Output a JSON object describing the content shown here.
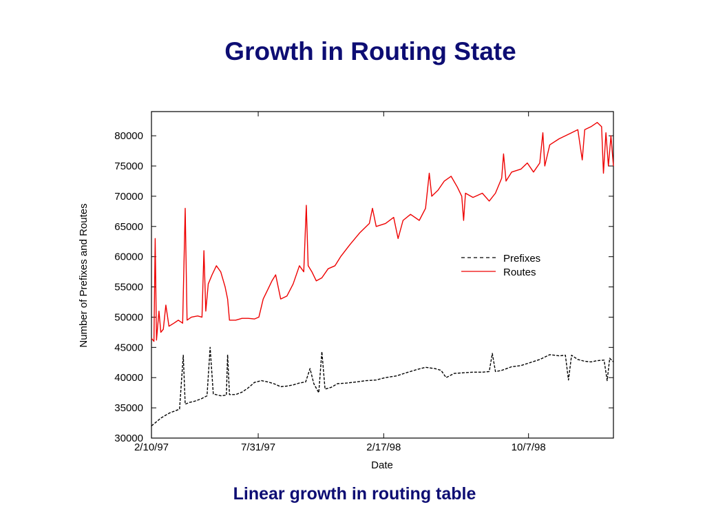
{
  "slide": {
    "title": "Growth in Routing State",
    "caption": "Linear growth in routing table"
  },
  "chart_data": {
    "type": "line",
    "xlabel": "Date",
    "ylabel": "Number of Prefixes and Routes",
    "x_ticks": [
      "2/10/97",
      "7/31/97",
      "2/17/98",
      "10/7/98"
    ],
    "x_range": [
      "1997-02-10",
      "1999-02-20"
    ],
    "ylim": [
      30000,
      84000
    ],
    "y_ticks": [
      30000,
      35000,
      40000,
      45000,
      50000,
      55000,
      60000,
      65000,
      70000,
      75000,
      80000
    ],
    "grid": false,
    "legend_position": "right",
    "series": [
      {
        "name": "Prefixes",
        "color": "#000000",
        "style": "dashed",
        "points": [
          [
            "1997-02-10",
            32000
          ],
          [
            "1997-02-18",
            32700
          ],
          [
            "1997-02-25",
            33300
          ],
          [
            "1997-03-05",
            33800
          ],
          [
            "1997-03-12",
            34200
          ],
          [
            "1997-03-20",
            34500
          ],
          [
            "1997-03-27",
            34800
          ],
          [
            "1997-04-02",
            43700
          ],
          [
            "1997-04-05",
            35600
          ],
          [
            "1997-04-12",
            35900
          ],
          [
            "1997-04-20",
            36100
          ],
          [
            "1997-05-01",
            36500
          ],
          [
            "1997-05-10",
            37000
          ],
          [
            "1997-05-15",
            45000
          ],
          [
            "1997-05-20",
            37300
          ],
          [
            "1997-06-01",
            37000
          ],
          [
            "1997-06-10",
            37100
          ],
          [
            "1997-06-12",
            43800
          ],
          [
            "1997-06-15",
            37200
          ],
          [
            "1997-06-25",
            37200
          ],
          [
            "1997-07-05",
            37600
          ],
          [
            "1997-07-15",
            38300
          ],
          [
            "1997-07-25",
            39200
          ],
          [
            "1997-08-05",
            39500
          ],
          [
            "1997-08-15",
            39300
          ],
          [
            "1997-08-25",
            39000
          ],
          [
            "1997-09-05",
            38500
          ],
          [
            "1997-09-15",
            38600
          ],
          [
            "1997-09-25",
            38800
          ],
          [
            "1997-10-05",
            39100
          ],
          [
            "1997-10-15",
            39300
          ],
          [
            "1997-10-22",
            41500
          ],
          [
            "1997-10-28",
            39000
          ],
          [
            "1997-11-05",
            37500
          ],
          [
            "1997-11-10",
            44300
          ],
          [
            "1997-11-15",
            38100
          ],
          [
            "1997-11-25",
            38400
          ],
          [
            "1997-12-05",
            39000
          ],
          [
            "1997-12-20",
            39100
          ],
          [
            "1998-01-05",
            39300
          ],
          [
            "1998-01-20",
            39500
          ],
          [
            "1998-02-05",
            39600
          ],
          [
            "1998-02-20",
            40000
          ],
          [
            "1998-03-10",
            40300
          ],
          [
            "1998-03-25",
            40800
          ],
          [
            "1998-04-10",
            41300
          ],
          [
            "1998-04-25",
            41700
          ],
          [
            "1998-05-10",
            41500
          ],
          [
            "1998-05-20",
            41200
          ],
          [
            "1998-05-28",
            40000
          ],
          [
            "1998-06-10",
            40700
          ],
          [
            "1998-06-25",
            40800
          ],
          [
            "1998-07-10",
            40900
          ],
          [
            "1998-07-25",
            40900
          ],
          [
            "1998-08-05",
            41000
          ],
          [
            "1998-08-10",
            44000
          ],
          [
            "1998-08-15",
            41000
          ],
          [
            "1998-08-25",
            41200
          ],
          [
            "1998-09-10",
            41800
          ],
          [
            "1998-09-25",
            42000
          ],
          [
            "1998-10-10",
            42500
          ],
          [
            "1998-10-25",
            43000
          ],
          [
            "1998-11-10",
            43800
          ],
          [
            "1998-11-25",
            43600
          ],
          [
            "1998-12-05",
            43700
          ],
          [
            "1998-12-10",
            39600
          ],
          [
            "1998-12-15",
            43700
          ],
          [
            "1998-12-25",
            43000
          ],
          [
            "1999-01-05",
            42700
          ],
          [
            "1999-01-15",
            42600
          ],
          [
            "1999-01-25",
            42800
          ],
          [
            "1999-02-05",
            42900
          ],
          [
            "1999-02-10",
            39500
          ],
          [
            "1999-02-14",
            43200
          ],
          [
            "1999-02-20",
            42600
          ]
        ]
      },
      {
        "name": "Routes",
        "color": "#ee0000",
        "style": "solid",
        "points": [
          [
            "1997-02-10",
            46500
          ],
          [
            "1997-02-14",
            46000
          ],
          [
            "1997-02-16",
            63000
          ],
          [
            "1997-02-18",
            46200
          ],
          [
            "1997-02-22",
            51000
          ],
          [
            "1997-02-25",
            47500
          ],
          [
            "1997-03-01",
            48000
          ],
          [
            "1997-03-05",
            52000
          ],
          [
            "1997-03-10",
            48500
          ],
          [
            "1997-03-18",
            49000
          ],
          [
            "1997-03-25",
            49500
          ],
          [
            "1997-04-01",
            49000
          ],
          [
            "1997-04-05",
            68000
          ],
          [
            "1997-04-08",
            49500
          ],
          [
            "1997-04-15",
            50000
          ],
          [
            "1997-04-25",
            50200
          ],
          [
            "1997-05-02",
            50000
          ],
          [
            "1997-05-05",
            61000
          ],
          [
            "1997-05-08",
            51000
          ],
          [
            "1997-05-12",
            55500
          ],
          [
            "1997-05-18",
            57000
          ],
          [
            "1997-05-25",
            58500
          ],
          [
            "1997-06-01",
            57500
          ],
          [
            "1997-06-08",
            55000
          ],
          [
            "1997-06-12",
            53000
          ],
          [
            "1997-06-15",
            49500
          ],
          [
            "1997-06-25",
            49500
          ],
          [
            "1997-07-05",
            49800
          ],
          [
            "1997-07-15",
            49800
          ],
          [
            "1997-07-25",
            49700
          ],
          [
            "1997-08-01",
            50000
          ],
          [
            "1997-08-08",
            53000
          ],
          [
            "1997-08-15",
            54500
          ],
          [
            "1997-08-22",
            56000
          ],
          [
            "1997-08-28",
            57000
          ],
          [
            "1997-09-05",
            53000
          ],
          [
            "1997-09-15",
            53500
          ],
          [
            "1997-09-25",
            55500
          ],
          [
            "1997-10-05",
            58500
          ],
          [
            "1997-10-12",
            57500
          ],
          [
            "1997-10-16",
            68500
          ],
          [
            "1997-10-19",
            58500
          ],
          [
            "1997-10-25",
            57500
          ],
          [
            "1997-11-01",
            56000
          ],
          [
            "1997-11-10",
            56500
          ],
          [
            "1997-11-20",
            58000
          ],
          [
            "1997-12-01",
            58500
          ],
          [
            "1997-12-10",
            60000
          ],
          [
            "1997-12-25",
            62000
          ],
          [
            "1998-01-10",
            64000
          ],
          [
            "1998-01-25",
            65500
          ],
          [
            "1998-01-30",
            68000
          ],
          [
            "1998-02-05",
            65000
          ],
          [
            "1998-02-20",
            65500
          ],
          [
            "1998-03-05",
            66500
          ],
          [
            "1998-03-12",
            63000
          ],
          [
            "1998-03-20",
            66000
          ],
          [
            "1998-04-01",
            67000
          ],
          [
            "1998-04-15",
            66000
          ],
          [
            "1998-04-25",
            68000
          ],
          [
            "1998-05-01",
            73800
          ],
          [
            "1998-05-05",
            70000
          ],
          [
            "1998-05-15",
            71000
          ],
          [
            "1998-05-25",
            72500
          ],
          [
            "1998-06-05",
            73300
          ],
          [
            "1998-06-15",
            71500
          ],
          [
            "1998-06-22",
            70000
          ],
          [
            "1998-06-25",
            66000
          ],
          [
            "1998-06-28",
            70500
          ],
          [
            "1998-07-10",
            69800
          ],
          [
            "1998-07-25",
            70500
          ],
          [
            "1998-08-05",
            69200
          ],
          [
            "1998-08-15",
            70500
          ],
          [
            "1998-08-25",
            73000
          ],
          [
            "1998-08-28",
            77000
          ],
          [
            "1998-09-01",
            72500
          ],
          [
            "1998-09-10",
            74000
          ],
          [
            "1998-09-25",
            74500
          ],
          [
            "1998-10-05",
            75500
          ],
          [
            "1998-10-15",
            74000
          ],
          [
            "1998-10-25",
            75500
          ],
          [
            "1998-10-30",
            80500
          ],
          [
            "1998-11-02",
            75000
          ],
          [
            "1998-11-10",
            78500
          ],
          [
            "1998-11-25",
            79500
          ],
          [
            "1998-12-05",
            80000
          ],
          [
            "1998-12-15",
            80500
          ],
          [
            "1998-12-25",
            81000
          ],
          [
            "1999-01-01",
            76000
          ],
          [
            "1999-01-05",
            81000
          ],
          [
            "1999-01-15",
            81500
          ],
          [
            "1999-01-25",
            82200
          ],
          [
            "1999-02-01",
            81500
          ],
          [
            "1999-02-04",
            73800
          ],
          [
            "1999-02-08",
            80500
          ],
          [
            "1999-02-12",
            75000
          ],
          [
            "1999-02-16",
            80000
          ],
          [
            "1999-02-20",
            75000
          ]
        ]
      }
    ]
  }
}
